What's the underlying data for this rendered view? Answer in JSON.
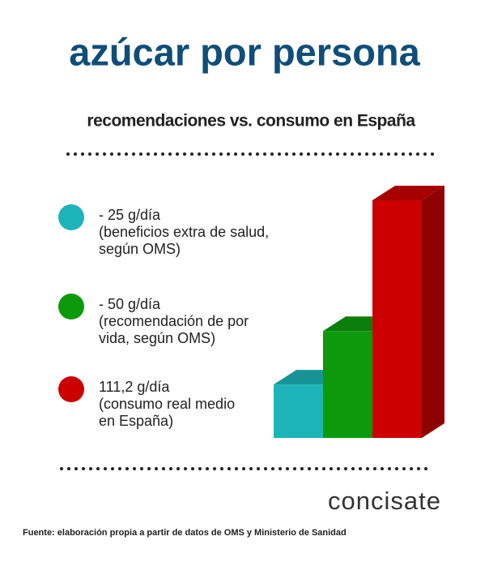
{
  "chart_data": {
    "type": "bar3d",
    "title": "azúcar por persona",
    "subtitle": "recomendaciones vs. consumo en España",
    "values": [
      25,
      50,
      111.2
    ],
    "value_labels": [
      "- 25 g/día",
      "- 50 g/día",
      "111,2 g/día"
    ],
    "descriptions": [
      [
        "(beneficios extra de salud,",
        "según OMS)"
      ],
      [
        "(recomendación de por",
        "vida, según OMS)"
      ],
      [
        "(consumo real medio",
        "en España)"
      ]
    ],
    "colors": [
      "#1db4b9",
      "#0c9a0c",
      "#cc0000"
    ],
    "source": "Fuente: elaboración propia a partir de  datos de OMS y Ministerio de Sanidad",
    "brand": "concisate"
  }
}
